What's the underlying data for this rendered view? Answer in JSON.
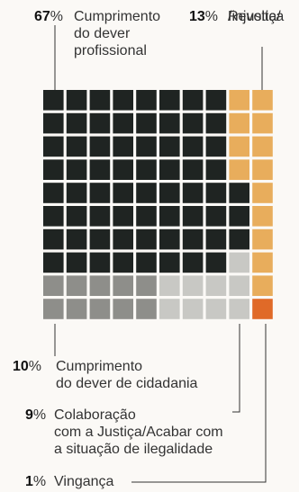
{
  "chart_data": {
    "type": "waffle",
    "grid": "10x10",
    "categories": [
      {
        "pct_label": "67",
        "pct_sign": "%",
        "label": "Cumprimento do dever profissional",
        "lines": [
          "Cumprimento",
          "do dever",
          "profissional"
        ],
        "value": 67,
        "color": "#1f2422"
      },
      {
        "pct_label": "13",
        "pct_sign": "%",
        "label": "Revolta/ /injustiça",
        "lines": [
          "Revolta/",
          "/injustiça"
        ],
        "value": 13,
        "color": "#e8ad5c"
      },
      {
        "pct_label": "10",
        "pct_sign": "%",
        "label": "Cumprimento do dever de cidadania",
        "lines": [
          "Cumprimento",
          "do dever de cidadania"
        ],
        "value": 10,
        "color": "#8e8e8a"
      },
      {
        "pct_label": "9",
        "pct_sign": "%",
        "label": "Colaboração com a Justiça/Acabar com a situação de ilegalidade",
        "lines": [
          "Colaboração",
          "com a Justiça/Acabar com",
          "a situação de ilegalidade"
        ],
        "value": 9,
        "color": "#c8c8c4"
      },
      {
        "pct_label": "1",
        "pct_sign": "%",
        "label": "Vingança",
        "lines": [
          "Vingança"
        ],
        "value": 1,
        "color": "#e06a28"
      }
    ]
  }
}
